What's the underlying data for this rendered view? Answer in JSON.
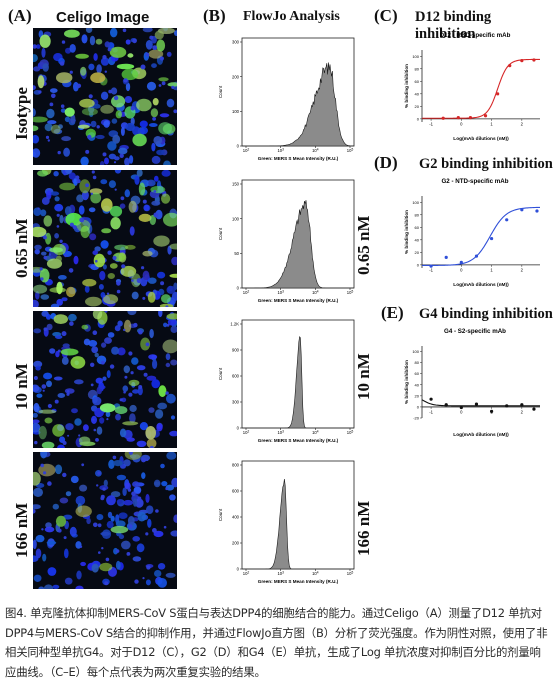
{
  "panels": {
    "A": {
      "letter": "(A)",
      "title": "Celigo Image"
    },
    "B": {
      "letter": "(B)",
      "title": "FlowJo Analysis"
    },
    "C": {
      "letter": "(C)",
      "title": "D12 binding inhibition"
    },
    "D": {
      "letter": "(D)",
      "title": "G2 binding inhibition"
    },
    "E": {
      "letter": "(E)",
      "title": "G4 binding inhibition"
    }
  },
  "rows": [
    "Isotype",
    "0.65 nM",
    "10 nM",
    "166 nM"
  ],
  "histograms": [
    {
      "ylabel": "Count",
      "xlabel": "Green: MERS S Mean Intensity (R.U.)",
      "yticks": [
        "0",
        "100",
        "200",
        "300"
      ],
      "xticks": [
        "10^2",
        "10^3",
        "10^4",
        "10^5"
      ]
    },
    {
      "ylabel": "Count",
      "xlabel": "Green: MERS S Mean Intensity (R.U.)",
      "yticks": [
        "0",
        "50",
        "100",
        "150"
      ],
      "xticks": [
        "10^2",
        "10^3",
        "10^4",
        "10^5"
      ]
    },
    {
      "ylabel": "Count",
      "xlabel": "Green: MERS S Mean Intensity (R.U.)",
      "yticks": [
        "0",
        "300",
        "600",
        "900",
        "1.2K"
      ],
      "xticks": [
        "10^2",
        "10^3",
        "10^4",
        "10^5"
      ]
    },
    {
      "ylabel": "Count",
      "xlabel": "Green: MERS S Mean Intensity (R.U.)",
      "yticks": [
        "0",
        "200",
        "400",
        "600",
        "800"
      ],
      "xticks": [
        "10^2",
        "10^3",
        "10^4",
        "10^5"
      ]
    }
  ],
  "chart_data": [
    {
      "type": "scatter",
      "panel": "C",
      "title": "D12 - RBD-specific mAb",
      "xlabel": "Log(mAb dilutions (nM))",
      "ylabel": "% binding inhibition",
      "xticks": [
        "-1",
        "0",
        "1",
        "2"
      ],
      "yticks": [
        "0",
        "20",
        "40",
        "60",
        "80",
        "100"
      ],
      "xlim": [
        -1.3,
        2.6
      ],
      "ylim": [
        -5,
        110
      ],
      "color": "#d62728",
      "x": [
        -0.6,
        -0.1,
        0.3,
        0.8,
        1.2,
        1.6,
        2.0,
        2.4
      ],
      "y": [
        1,
        2,
        2,
        5,
        40,
        85,
        93,
        94
      ],
      "fit": {
        "bottom": 1,
        "top": 95,
        "ec50_log": 1.2,
        "hill": 2.6
      }
    },
    {
      "type": "scatter",
      "panel": "D",
      "title": "G2 - NTD-specific mAb",
      "xlabel": "Log(mAb dilutions (nM))",
      "ylabel": "% binding inhibition",
      "xticks": [
        "-1",
        "0",
        "1",
        "2"
      ],
      "yticks": [
        "0",
        "20",
        "40",
        "60",
        "80",
        "100"
      ],
      "xlim": [
        -1.3,
        2.6
      ],
      "ylim": [
        -5,
        110
      ],
      "color": "#3050d8",
      "x": [
        -1.0,
        -0.5,
        0.0,
        0.5,
        1.0,
        1.5,
        2.0,
        2.5
      ],
      "y": [
        -2,
        12,
        4,
        14,
        42,
        72,
        88,
        86
      ],
      "fit": {
        "bottom": -1,
        "top": 92,
        "ec50_log": 0.95,
        "hill": 1.6
      }
    },
    {
      "type": "scatter",
      "panel": "E",
      "title": "G4 - S2-specific mAb",
      "xlabel": "Log(mAb dilutions (nM))",
      "ylabel": "% binding inhibition",
      "xticks": [
        "-1",
        "0",
        "1",
        "2"
      ],
      "yticks": [
        "-20",
        "0",
        "20",
        "40",
        "60",
        "80",
        "100"
      ],
      "xlim": [
        -1.3,
        2.6
      ],
      "ylim": [
        -20,
        110
      ],
      "color": "#111111",
      "x": [
        -1.0,
        -0.5,
        0.0,
        0.5,
        1.0,
        1.5,
        2.0,
        2.4
      ],
      "y": [
        14,
        4,
        -1,
        5,
        -8,
        2,
        4,
        -4
      ],
      "fit": {
        "bottom": 2,
        "top": 24,
        "ec50_log": -1.3,
        "hill": -2.5
      }
    }
  ],
  "caption": "图4. 单克隆抗体抑制MERS-CoV S蛋白与表达DPP4的细胞结合的能力。通过Celigo（A）测量了D12 单抗对DPP4与MERS-CoV S结合的抑制作用，并通过FlowJo直方图（B）分析了荧光强度。作为阴性对照，使用了非相关同种型单抗G4。对于D12（C），G2（D）和G4（E）单抗，生成了Log 单抗浓度对抑制百分比的剂量响应曲线。（C–E）每个点代表为两次重复实验的结果。"
}
